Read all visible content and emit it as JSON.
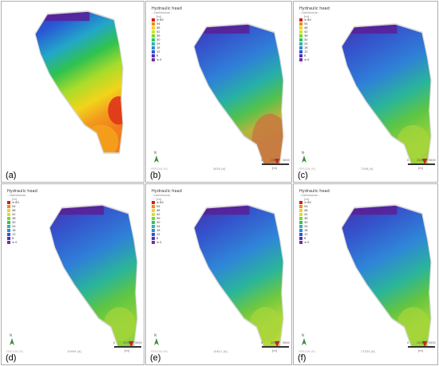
{
  "legend": {
    "title": "Hydraulic head",
    "subtitle": "- Continuous -",
    "unit": "[m]",
    "entries": [
      {
        "label": "≥ 60",
        "color": "#d22020"
      },
      {
        "label": "54",
        "color": "#f08a1c"
      },
      {
        "label": "48",
        "color": "#f6d21a"
      },
      {
        "label": "42",
        "color": "#cfe52a"
      },
      {
        "label": "36",
        "color": "#7dd33a"
      },
      {
        "label": "30",
        "color": "#38c15a"
      },
      {
        "label": "24",
        "color": "#2ab6a8"
      },
      {
        "label": "18",
        "color": "#2e8bd6"
      },
      {
        "label": "12",
        "color": "#3156d4"
      },
      {
        "label": "6",
        "color": "#4a36b8"
      },
      {
        "label": "≤ 0",
        "color": "#7a2aa8"
      }
    ]
  },
  "north_label": "N",
  "feflow_label": "FEFLOW (R)",
  "scale": {
    "t0": "0",
    "t1": "2500",
    "t2": "5000",
    "unit": "[m]"
  },
  "panels": [
    {
      "tag": "(a)",
      "time": "",
      "theme": "a"
    },
    {
      "tag": "(b)",
      "time": "3653 [d]",
      "theme": "b"
    },
    {
      "tag": "(c)",
      "time": "7306 [d]",
      "theme": "c"
    },
    {
      "tag": "(d)",
      "time": "10959 [d]",
      "theme": "d"
    },
    {
      "tag": "(e)",
      "time": "14611 [d]",
      "theme": "e"
    },
    {
      "tag": "(f)",
      "time": "17533 [d]",
      "theme": "f"
    }
  ]
}
